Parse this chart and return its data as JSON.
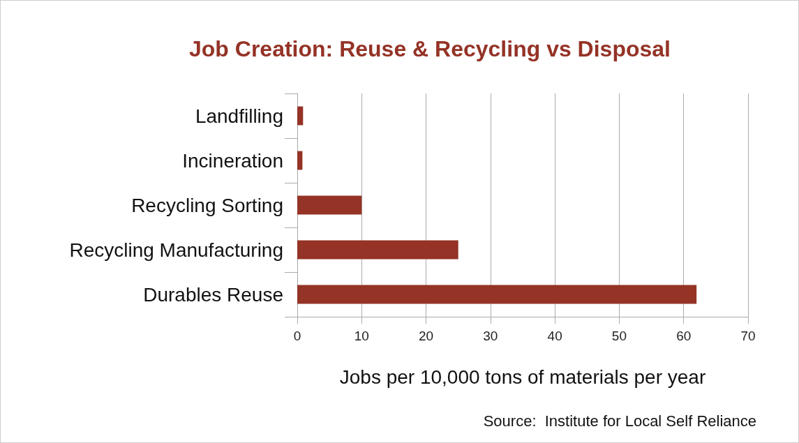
{
  "chart_data": {
    "type": "bar",
    "orientation": "horizontal",
    "title": "Job Creation: Reuse & Recycling vs Disposal",
    "categories": [
      "Landfilling",
      "Incineration",
      "Recycling Sorting",
      "Recycling Manufacturing",
      "Durables Reuse"
    ],
    "values": [
      0.9,
      0.8,
      10,
      25,
      62
    ],
    "color": "#943326",
    "xlabel": "Jobs per 10,000 tons of materials per year",
    "xlim": [
      0,
      70
    ],
    "xticks": [
      0,
      10,
      20,
      30,
      40,
      50,
      60,
      70
    ],
    "grid": "x",
    "annotations": [
      "Source:  Institute for Local Self Reliance"
    ]
  }
}
